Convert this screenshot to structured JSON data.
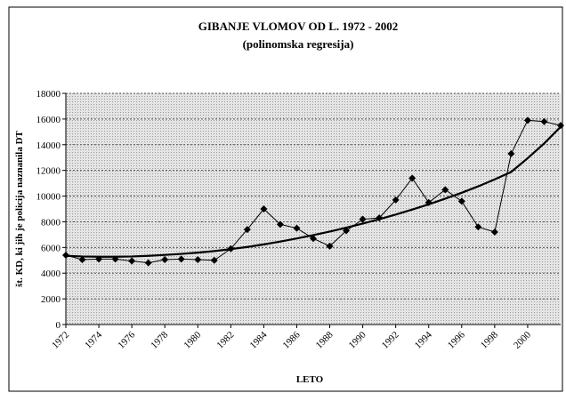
{
  "chart_data": {
    "type": "line",
    "title": "GIBANJE VLOMOV OD L. 1972 - 2002",
    "subtitle": "(polinomska regresija)",
    "y_label": "št. KD, ki jih je policija naznanila DT",
    "x_label": "LETO",
    "x": [
      1972,
      1973,
      1974,
      1975,
      1976,
      1977,
      1978,
      1979,
      1980,
      1981,
      1982,
      1983,
      1984,
      1985,
      1986,
      1987,
      1988,
      1989,
      1990,
      1991,
      1992,
      1993,
      1994,
      1995,
      1996,
      1997,
      1998,
      1999,
      2000,
      2001,
      2002
    ],
    "series": [
      {
        "color": "#000000",
        "marker": "diamond",
        "values": [
          5400,
          5050,
          5100,
          5100,
          4950,
          4800,
          5050,
          5100,
          5050,
          5000,
          5900,
          7400,
          9000,
          7800,
          7500,
          6700,
          6100,
          7300,
          8200,
          8300,
          9700,
          11400,
          9500,
          10500,
          9600,
          7600,
          7200,
          13300,
          15900,
          15800,
          15500
        ]
      },
      {
        "color": "#000000",
        "values": [
          5350,
          5300,
          5280,
          5280,
          5300,
          5350,
          5420,
          5500,
          5600,
          5720,
          5870,
          6040,
          6240,
          6460,
          6700,
          6960,
          7240,
          7540,
          7860,
          8200,
          8560,
          8950,
          9360,
          9800,
          10260,
          10760,
          11300,
          11880,
          12950,
          14100,
          15400
        ]
      }
    ],
    "xlim": [
      1972,
      2002
    ],
    "xticks": [
      1972,
      1974,
      1976,
      1978,
      1980,
      1982,
      1984,
      1986,
      1988,
      1990,
      1992,
      1994,
      1996,
      1998,
      2000
    ],
    "ylim": [
      0,
      18000
    ],
    "yticks": [
      0,
      2000,
      4000,
      6000,
      8000,
      10000,
      12000,
      14000,
      16000,
      18000
    ],
    "grid": true
  }
}
